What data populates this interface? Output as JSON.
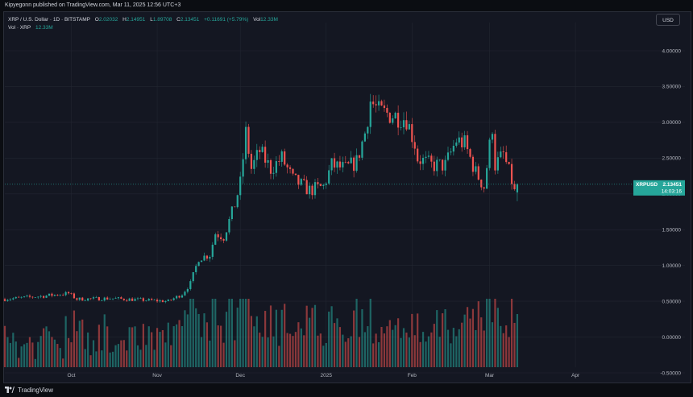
{
  "header": {
    "publisher_line": "Kipyegonn published on TradingView.com, Mar 11, 2025 12:56 UTC+3"
  },
  "legend": {
    "symbol": "XRP / U.S. Dollar · 1D · BITSTAMP",
    "o_label": "O",
    "o_value": "2.02032",
    "h_label": "H",
    "h_value": "2.14951",
    "l_label": "L",
    "l_value": "1.89708",
    "c_label": "C",
    "c_value": "2.13451",
    "change": "+0.11691 (+5.79%)",
    "vol_label": "Vol",
    "vol_value": "12.33M",
    "vol_series_label": "Vol · XRP",
    "vol_series_value": "12.33M"
  },
  "currency_button": "USD",
  "price_tag": {
    "symbol": "XRPUSD",
    "price": "2.13451",
    "countdown": "14:03:16"
  },
  "footer": {
    "brand": "TradingView"
  },
  "colors": {
    "up": "#26a69a",
    "down": "#ef5350",
    "background": "#141722",
    "grid": "#222631",
    "text": "#d1d4dc",
    "vol_up": "#26a69a",
    "vol_down": "#ef5350"
  },
  "chart_data": {
    "type": "candlestick",
    "title": "XRP / U.S. Dollar · 1D · BITSTAMP",
    "y_axis_ticks": [
      "4.00000",
      "3.50000",
      "3.00000",
      "2.50000",
      "2.00000",
      "1.50000",
      "1.00000",
      "0.50000",
      "0.00000",
      "-0.50000"
    ],
    "y_tick_values": [
      4.0,
      3.5,
      3.0,
      2.5,
      2.0,
      1.5,
      1.0,
      0.5,
      0.0,
      -0.5
    ],
    "ylim": [
      -0.9,
      4.3
    ],
    "x_axis_ticks": [
      "Oct",
      "Nov",
      "Dec",
      "2025",
      "Feb",
      "Mar",
      "Apr"
    ],
    "x_tick_dates": [
      "2024-10-01",
      "2024-11-01",
      "2024-12-01",
      "2025-01-01",
      "2025-02-01",
      "2025-03-01",
      "2025-04-01"
    ],
    "first_date": "2024-09-07",
    "last_price": 2.13451,
    "close_path": [
      {
        "date": "2024-09-07",
        "close": 0.53
      },
      {
        "date": "2024-09-20",
        "close": 0.57
      },
      {
        "date": "2024-09-30",
        "close": 0.61
      },
      {
        "date": "2024-10-03",
        "close": 0.53
      },
      {
        "date": "2024-10-15",
        "close": 0.54
      },
      {
        "date": "2024-10-31",
        "close": 0.51
      },
      {
        "date": "2024-11-05",
        "close": 0.5
      },
      {
        "date": "2024-11-10",
        "close": 0.6
      },
      {
        "date": "2024-11-13",
        "close": 0.75
      },
      {
        "date": "2024-11-16",
        "close": 1.1
      },
      {
        "date": "2024-11-20",
        "close": 1.15
      },
      {
        "date": "2024-11-22",
        "close": 1.45
      },
      {
        "date": "2024-11-25",
        "close": 1.4
      },
      {
        "date": "2024-11-29",
        "close": 1.85
      },
      {
        "date": "2024-12-01",
        "close": 2.15
      },
      {
        "date": "2024-12-03",
        "close": 2.85
      },
      {
        "date": "2024-12-05",
        "close": 2.35
      },
      {
        "date": "2024-12-08",
        "close": 2.6
      },
      {
        "date": "2024-12-12",
        "close": 2.35
      },
      {
        "date": "2024-12-16",
        "close": 2.5
      },
      {
        "date": "2024-12-20",
        "close": 2.2
      },
      {
        "date": "2024-12-26",
        "close": 2.05
      },
      {
        "date": "2024-12-31",
        "close": 2.1
      },
      {
        "date": "2025-01-03",
        "close": 2.4
      },
      {
        "date": "2025-01-08",
        "close": 2.35
      },
      {
        "date": "2025-01-12",
        "close": 2.45
      },
      {
        "date": "2025-01-15",
        "close": 2.85
      },
      {
        "date": "2025-01-17",
        "close": 3.3
      },
      {
        "date": "2025-01-20",
        "close": 3.15
      },
      {
        "date": "2025-01-25",
        "close": 3.1
      },
      {
        "date": "2025-01-30",
        "close": 3.05
      },
      {
        "date": "2025-02-02",
        "close": 2.7
      },
      {
        "date": "2025-02-03",
        "close": 2.5
      },
      {
        "date": "2025-02-08",
        "close": 2.4
      },
      {
        "date": "2025-02-13",
        "close": 2.4
      },
      {
        "date": "2025-02-17",
        "close": 2.75
      },
      {
        "date": "2025-02-20",
        "close": 2.7
      },
      {
        "date": "2025-02-24",
        "close": 2.3
      },
      {
        "date": "2025-02-27",
        "close": 2.1
      },
      {
        "date": "2025-03-02",
        "close": 2.95
      },
      {
        "date": "2025-03-03",
        "close": 2.4
      },
      {
        "date": "2025-03-06",
        "close": 2.55
      },
      {
        "date": "2025-03-09",
        "close": 2.18
      },
      {
        "date": "2025-03-10",
        "close": 2.02
      },
      {
        "date": "2025-03-11",
        "close": 2.13451
      }
    ]
  }
}
